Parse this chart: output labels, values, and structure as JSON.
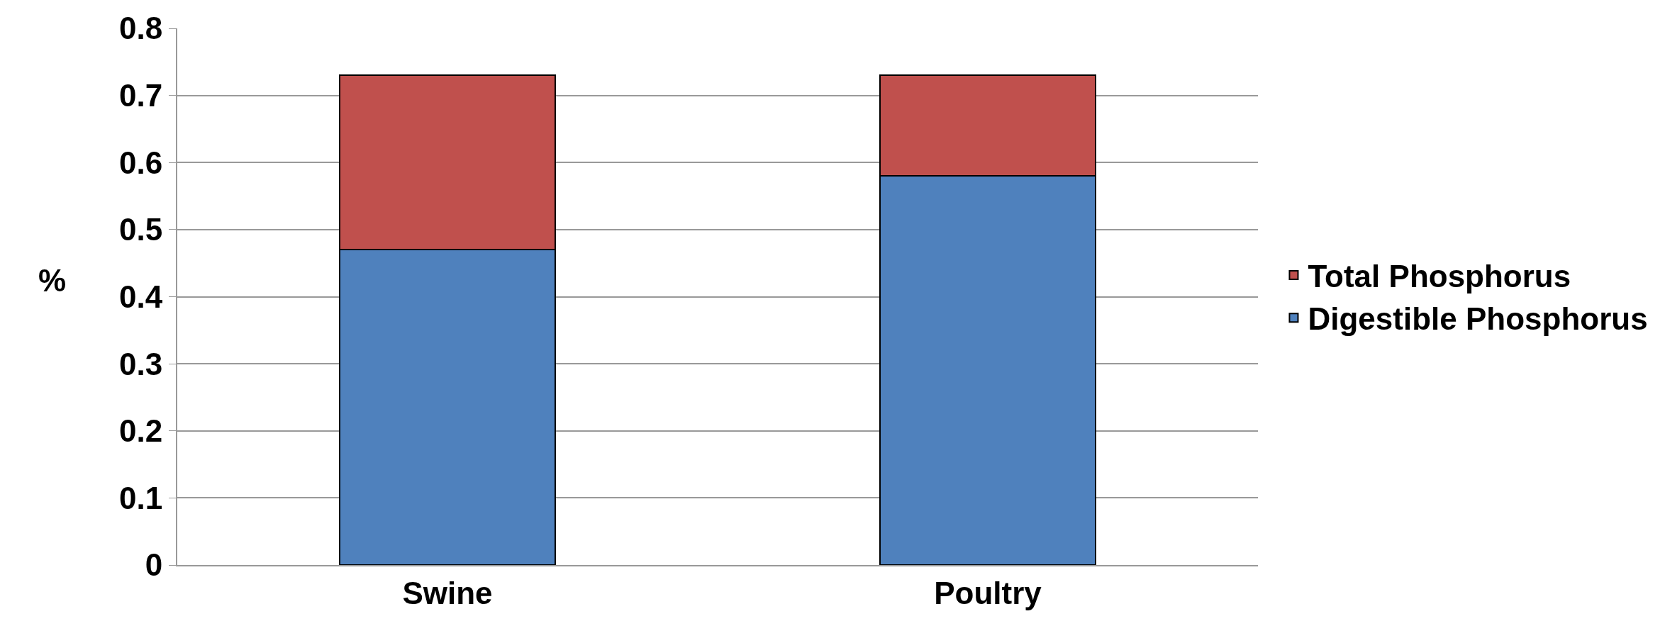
{
  "chart_data": {
    "type": "bar",
    "stacked": true,
    "ylabel": "%",
    "categories": [
      "Swine",
      "Poultry"
    ],
    "series": [
      {
        "name": "Digestible Phosphorus",
        "color": "#4f81bd",
        "values": [
          0.47,
          0.58
        ]
      },
      {
        "name": "Total Phosphorus",
        "color": "#c0504d",
        "values": [
          0.26,
          0.15
        ]
      }
    ],
    "ylim": [
      0,
      0.8
    ],
    "yticks": [
      0,
      0.1,
      0.2,
      0.3,
      0.4,
      0.5,
      0.6,
      0.7,
      0.8
    ],
    "grid": "y",
    "legend": "right"
  }
}
